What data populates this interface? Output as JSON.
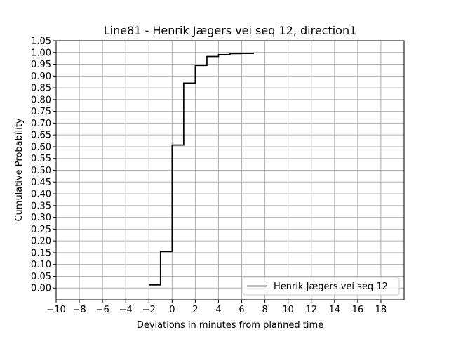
{
  "chart_data": {
    "type": "line",
    "title": "Line81 - Henrik Jægers vei seq 12, direction1",
    "xlabel": "Deviations in minutes from planned time",
    "ylabel": "Cumulative Probability",
    "xlim": [
      -10,
      20
    ],
    "ylim": [
      -0.05,
      1.05
    ],
    "xticks": [
      -10,
      -8,
      -6,
      -4,
      -2,
      0,
      2,
      4,
      6,
      8,
      10,
      12,
      14,
      16,
      18
    ],
    "xtick_labels": [
      "−10",
      "−8",
      "−6",
      "−4",
      "−2",
      "0",
      "2",
      "4",
      "6",
      "8",
      "10",
      "12",
      "14",
      "16",
      "18"
    ],
    "yticks": [
      0.0,
      0.05,
      0.1,
      0.15,
      0.2,
      0.25,
      0.3,
      0.35,
      0.4,
      0.45,
      0.5,
      0.55,
      0.6,
      0.65,
      0.7,
      0.75,
      0.8,
      0.85,
      0.9,
      0.95,
      1.0,
      1.05
    ],
    "ytick_labels": [
      "0.00",
      "0.05",
      "0.10",
      "0.15",
      "0.20",
      "0.25",
      "0.30",
      "0.35",
      "0.40",
      "0.45",
      "0.50",
      "0.55",
      "0.60",
      "0.65",
      "0.70",
      "0.75",
      "0.80",
      "0.85",
      "0.90",
      "0.95",
      "1.00",
      "1.05"
    ],
    "grid": true,
    "legend_position": "lower-right",
    "series": [
      {
        "name": "Henrik Jægers vei seq 12",
        "color": "#000000",
        "step": "post",
        "x": [
          -2,
          -1,
          0,
          1,
          2,
          3,
          4,
          5,
          6,
          7
        ],
        "y": [
          0.013,
          0.155,
          0.607,
          0.87,
          0.945,
          0.983,
          0.991,
          0.995,
          0.996,
          1.0
        ]
      }
    ]
  }
}
